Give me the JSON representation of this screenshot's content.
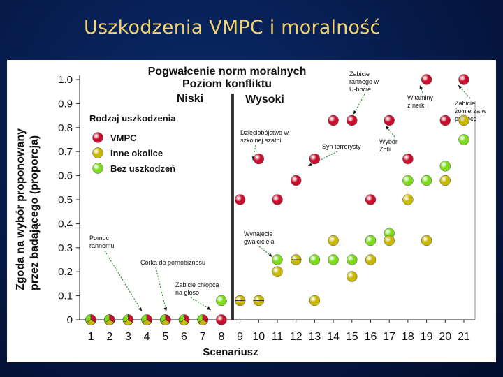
{
  "slide": {
    "title": "Uszkodzenia VMPC i moralność"
  },
  "chart_data": {
    "type": "scatter",
    "title": "Pogwałcenie norm moralnych",
    "subtitle": "Poziom konfliktu",
    "conflict_levels": [
      "Niski",
      "Wysoki"
    ],
    "xlabel": "Scenariusz",
    "ylabel": [
      "Zgoda na wybór proponowany",
      "przez badającego (proporcja)"
    ],
    "x": [
      1,
      2,
      3,
      4,
      5,
      6,
      7,
      8,
      9,
      10,
      11,
      12,
      13,
      14,
      15,
      16,
      17,
      18,
      19,
      20,
      21
    ],
    "xlim": [
      0.4,
      21.6
    ],
    "ylim": [
      0,
      1.0
    ],
    "yticks": [
      0,
      0.1,
      0.2,
      0.3,
      0.4,
      0.5,
      0.6,
      0.7,
      0.8,
      0.9,
      1.0
    ],
    "ytick_labels": [
      "0",
      "0.1",
      "0.2",
      "0.3",
      "0.4",
      "0.5",
      "0.6",
      "0.7",
      "0.8",
      "0.9",
      "1.0"
    ],
    "divider_x": 8.6,
    "legend": {
      "title": "Rodzaj uszkodzenia",
      "position": "top-left"
    },
    "series": [
      {
        "name": "VMPC",
        "color": "#c8102e",
        "values": [
          0,
          0,
          0,
          0,
          0,
          0,
          0,
          0,
          0.5,
          0.67,
          0.5,
          0.58,
          0.67,
          0.83,
          0.83,
          0.5,
          0.83,
          0.67,
          1.0,
          0.83,
          1.0
        ]
      },
      {
        "name": "Inne okolice",
        "color": "#c8b800",
        "values": [
          0,
          0,
          0,
          0,
          0,
          0,
          0,
          0,
          0.08,
          0.08,
          0.2,
          0.25,
          0.08,
          0.33,
          0.18,
          0.25,
          0.33,
          0.5,
          0.33,
          0.58,
          0.83
        ]
      },
      {
        "name": "Bez uszkodzeń",
        "color": "#7cdc1c",
        "values": [
          0,
          0,
          0,
          0,
          0,
          0,
          0,
          0.08,
          0.08,
          0.08,
          0.25,
          0.25,
          0.25,
          0.25,
          0.25,
          0.33,
          0.36,
          0.58,
          0.58,
          0.64,
          0.75
        ]
      }
    ],
    "annotations": [
      {
        "lines": [
          "Pomoc",
          "rannemu"
        ],
        "x": 4
      },
      {
        "lines": [
          "Córka do pornobiznesu"
        ],
        "x": 5
      },
      {
        "lines": [
          "Zabicie chłopca",
          "na głoso"
        ],
        "x": 7
      },
      {
        "lines": [
          "Dzieciobójstwo w",
          "szkolnej szatni"
        ],
        "x": 10
      },
      {
        "lines": [
          "Wynajęcie",
          "gwałciciela"
        ],
        "x": 11
      },
      {
        "lines": [
          "Syn terrorysty"
        ],
        "x": 13
      },
      {
        "lines": [
          "Zabicie",
          "rannego w",
          "U-bocie"
        ],
        "x": 15
      },
      {
        "lines": [
          "Wybór",
          "Zofii"
        ],
        "x": 17
      },
      {
        "lines": [
          "Witaminy",
          "z nerki"
        ],
        "x": 19
      },
      {
        "lines": [
          "Zabicie",
          "żołnierza w",
          "pułapce"
        ],
        "x": 21
      }
    ]
  }
}
